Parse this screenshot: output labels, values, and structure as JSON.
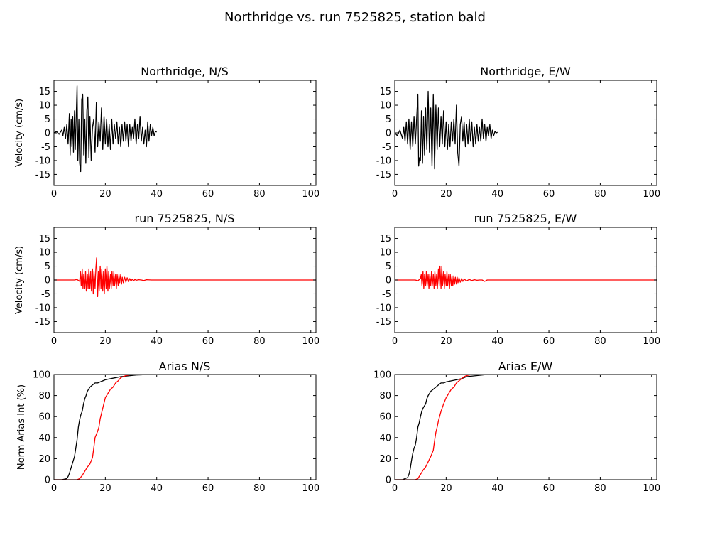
{
  "figure": {
    "title": "Northridge vs. run 7525825, station bald"
  },
  "colors": {
    "observed": "#000000",
    "simulated": "#ff0000",
    "axis": "#000000",
    "background": "#ffffff"
  },
  "chart_data": [
    {
      "type": "line",
      "title": "Northridge, N/S",
      "xlabel": "",
      "ylabel": "Velocity (cm/s)",
      "xlim": [
        0,
        102
      ],
      "ylim": [
        -19,
        19
      ],
      "xticks": [
        "0",
        "20",
        "40",
        "60",
        "80",
        "100"
      ],
      "yticks": [
        "15",
        "10",
        "5",
        "0",
        "-5",
        "-10",
        "-15"
      ],
      "grid": false,
      "series": [
        {
          "name": "",
          "color": "#000000",
          "x": [
            0,
            1,
            2,
            3,
            3.5,
            4,
            4.5,
            5,
            5.5,
            6,
            6.3,
            6.7,
            7,
            7.3,
            7.6,
            8,
            8.3,
            8.6,
            9,
            9.3,
            9.7,
            10,
            10.4,
            10.8,
            11.2,
            11.6,
            12,
            12.4,
            12.8,
            13.2,
            13.6,
            14,
            14.5,
            15,
            15.5,
            16,
            16.5,
            17,
            17.5,
            18,
            18.5,
            19,
            19.5,
            20,
            20.5,
            21,
            21.5,
            22,
            22.5,
            23,
            23.5,
            24,
            24.5,
            25,
            25.5,
            26,
            26.5,
            27,
            27.5,
            28,
            28.5,
            29,
            29.5,
            30,
            30.5,
            31,
            31.5,
            32,
            32.5,
            33,
            33.5,
            34,
            34.5,
            35,
            35.5,
            36,
            36.5,
            37,
            37.5,
            38,
            38.5,
            39,
            39.5,
            40
          ],
          "y": [
            0,
            0.5,
            -0.5,
            1,
            -1,
            2,
            -2,
            3,
            -4,
            7,
            -8,
            5,
            -5,
            6,
            -7,
            8,
            -6,
            4,
            17,
            -10,
            5,
            -11,
            -14,
            12,
            14,
            -8,
            5,
            -11,
            8,
            13,
            -9,
            6,
            -10,
            2,
            5,
            -7,
            11,
            -5,
            4,
            -3,
            9,
            -6,
            6,
            -4,
            5,
            -5,
            3,
            -6,
            5,
            -4,
            3,
            -2,
            4,
            -4,
            2,
            -5,
            3,
            -3,
            4,
            -3,
            3,
            -5,
            3,
            -3,
            2,
            -2,
            5,
            -4,
            3,
            -2,
            6,
            -3,
            2,
            -4,
            1,
            -5,
            4,
            -3,
            3,
            -1,
            2,
            -1,
            0.5,
            0.3
          ]
        }
      ]
    },
    {
      "type": "line",
      "title": "Northridge, E/W",
      "xlabel": "",
      "ylabel": "",
      "xlim": [
        0,
        102
      ],
      "ylim": [
        -19,
        19
      ],
      "xticks": [
        "0",
        "20",
        "40",
        "60",
        "80",
        "100"
      ],
      "yticks": [
        "15",
        "10",
        "5",
        "0",
        "-5",
        "-10",
        "-15"
      ],
      "grid": false,
      "series": [
        {
          "name": "",
          "color": "#000000",
          "x": [
            0,
            1,
            2,
            3,
            3.5,
            4,
            4.5,
            5,
            5.5,
            6,
            6.5,
            7,
            7.5,
            8,
            8.5,
            9,
            9.3,
            9.6,
            10,
            10.4,
            10.8,
            11.2,
            11.6,
            12,
            12.5,
            13,
            13.5,
            14,
            14.5,
            15,
            15.5,
            16,
            16.5,
            17,
            17.5,
            18,
            18.5,
            19,
            19.5,
            20,
            20.5,
            21,
            21.5,
            22,
            22.5,
            23,
            23.5,
            24,
            24.5,
            25,
            25.5,
            26,
            26.5,
            27,
            27.5,
            28,
            28.5,
            29,
            29.5,
            30,
            30.5,
            31,
            31.5,
            32,
            32.5,
            33,
            33.5,
            34,
            34.5,
            35,
            35.5,
            36,
            36.5,
            37,
            37.5,
            38,
            38.5,
            39,
            39.5,
            40
          ],
          "y": [
            0,
            -1,
            1,
            -2,
            2,
            -3,
            4,
            -4,
            5,
            -6,
            4,
            -5,
            6,
            -4,
            5,
            14,
            -12,
            -9,
            -10,
            8,
            -11,
            6,
            -8,
            9,
            -6,
            15,
            -7,
            9,
            -12,
            14,
            -13,
            10,
            -6,
            9,
            -5,
            6,
            -4,
            8,
            -5,
            4,
            -6,
            3,
            -5,
            4,
            -3,
            5,
            -4,
            10,
            -7,
            -12,
            3,
            6,
            -3,
            4,
            -5,
            3,
            -4,
            5,
            -3,
            4,
            -5,
            2,
            -4,
            3,
            -3,
            2,
            -3,
            5,
            -2,
            3,
            -3,
            2,
            -1,
            3,
            -2,
            1,
            -1,
            0.5,
            0,
            0.2
          ]
        }
      ]
    },
    {
      "type": "line",
      "title": "run 7525825, N/S",
      "xlabel": "",
      "ylabel": "Velocity (cm/s)",
      "xlim": [
        0,
        102
      ],
      "ylim": [
        -19,
        19
      ],
      "xticks": [
        "0",
        "20",
        "40",
        "60",
        "80",
        "100"
      ],
      "yticks": [
        "15",
        "10",
        "5",
        "0",
        "-5",
        "-10",
        "-15"
      ],
      "grid": false,
      "series": [
        {
          "name": "",
          "color": "#ff0000",
          "x": [
            0,
            2,
            4,
            6,
            8,
            9,
            10,
            10.3,
            10.6,
            11,
            11.3,
            11.6,
            12,
            12.3,
            12.6,
            13,
            13.3,
            13.6,
            14,
            14.3,
            14.6,
            15,
            15.3,
            15.6,
            16,
            16.3,
            16.6,
            17,
            17.3,
            17.6,
            18,
            18.3,
            18.6,
            19,
            19.3,
            19.6,
            20,
            20.3,
            20.6,
            21,
            21.3,
            21.6,
            22,
            22.3,
            22.6,
            23,
            23.3,
            23.6,
            24,
            24.3,
            24.6,
            25,
            25.3,
            25.6,
            26,
            26.3,
            26.6,
            27,
            27.5,
            28,
            28.5,
            29,
            29.5,
            30,
            30.5,
            31,
            31.5,
            32,
            33,
            34,
            35,
            36,
            38,
            40,
            50,
            60,
            70,
            80,
            90,
            100,
            102
          ],
          "y": [
            0,
            0,
            0,
            0,
            0,
            0.2,
            -0.5,
            3,
            -2,
            4,
            -3,
            2,
            -3,
            3,
            -4,
            2,
            -3,
            4,
            -3,
            3,
            -4,
            4,
            -5,
            3,
            -3,
            4,
            8,
            -6,
            3,
            -4,
            5,
            -3,
            4,
            -4,
            3,
            -5,
            4,
            -3,
            5,
            -4,
            3,
            -3,
            2,
            -3,
            3,
            -2,
            3,
            -2,
            2,
            -3,
            2,
            -2,
            2,
            -1,
            2,
            -1.5,
            1,
            -1,
            1,
            -0.8,
            0.8,
            -0.6,
            0.5,
            -0.4,
            0.3,
            -0.3,
            0.2,
            -0.1,
            0.1,
            0,
            -0.2,
            0.1,
            0,
            0,
            0,
            0,
            0,
            0,
            0,
            0,
            0
          ]
        }
      ]
    },
    {
      "type": "line",
      "title": "run 7525825, E/W",
      "xlabel": "",
      "ylabel": "",
      "xlim": [
        0,
        102
      ],
      "ylim": [
        -19,
        19
      ],
      "xticks": [
        "0",
        "20",
        "40",
        "60",
        "80",
        "100"
      ],
      "yticks": [
        "15",
        "10",
        "5",
        "0",
        "-5",
        "-10",
        "-15"
      ],
      "grid": false,
      "series": [
        {
          "name": "",
          "color": "#ff0000",
          "x": [
            0,
            2,
            4,
            6,
            8,
            9,
            10,
            10.3,
            10.6,
            11,
            11.3,
            11.6,
            12,
            12.3,
            12.6,
            13,
            13.3,
            13.6,
            14,
            14.3,
            14.6,
            15,
            15.3,
            15.6,
            16,
            16.3,
            16.6,
            17,
            17.3,
            17.6,
            18,
            18.3,
            18.6,
            19,
            19.3,
            19.6,
            20,
            20.3,
            20.6,
            21,
            21.3,
            21.6,
            22,
            22.3,
            22.6,
            23,
            23.3,
            23.6,
            24,
            24.3,
            24.6,
            25,
            25.5,
            26,
            26.5,
            27,
            28,
            29,
            30,
            31,
            32,
            33,
            34,
            35,
            36,
            38,
            40,
            50,
            60,
            70,
            80,
            90,
            100,
            102
          ],
          "y": [
            0,
            0,
            0,
            0,
            0,
            -0.3,
            0.5,
            2,
            -2,
            3,
            -3,
            2,
            -2,
            3,
            -2,
            2,
            -3,
            2,
            -2,
            3,
            -2,
            2,
            -3,
            3,
            -2,
            2,
            -3,
            4,
            -2,
            5,
            -3,
            5,
            -2,
            3,
            -3,
            2,
            -2,
            3,
            -2,
            2,
            -3,
            2,
            -2,
            1.5,
            -2,
            1.5,
            -1.5,
            1,
            -1.5,
            1,
            -1,
            0.8,
            -0.8,
            0.5,
            -0.5,
            0.3,
            -0.3,
            0.2,
            -0.2,
            0.1,
            -0.1,
            0,
            0,
            -0.5,
            0,
            0,
            0,
            0,
            0,
            0,
            0,
            0,
            0,
            0
          ]
        }
      ]
    },
    {
      "type": "line",
      "title": "Arias N/S",
      "xlabel": "",
      "ylabel": "Norm Arias Int (%)",
      "xlim": [
        0,
        102
      ],
      "ylim": [
        0,
        100
      ],
      "xticks": [
        "0",
        "20",
        "40",
        "60",
        "80",
        "100"
      ],
      "yticks": [
        "100",
        "80",
        "60",
        "40",
        "20",
        "0"
      ],
      "grid": false,
      "series": [
        {
          "name": "",
          "color": "#000000",
          "x": [
            0,
            3,
            4,
            5,
            5.5,
            6,
            6.5,
            7,
            7.5,
            8,
            8.5,
            9,
            9.5,
            10,
            10.5,
            11,
            11.5,
            12,
            12.5,
            13,
            13.5,
            14,
            15,
            16,
            17,
            18,
            19,
            20,
            22,
            24,
            26,
            28,
            30,
            32,
            34,
            36,
            40,
            102
          ],
          "y": [
            0,
            0,
            0.5,
            1,
            3,
            6,
            10,
            14,
            18,
            22,
            30,
            38,
            50,
            57,
            62,
            65,
            72,
            77,
            80,
            84,
            86,
            88,
            90,
            92,
            92,
            93,
            94,
            95,
            96,
            97,
            98,
            98.5,
            99,
            99.5,
            99.7,
            100,
            100,
            100
          ]
        },
        {
          "name": "",
          "color": "#ff0000",
          "x": [
            0,
            5,
            9,
            10,
            11,
            12,
            13,
            14,
            15,
            15.5,
            16,
            16.5,
            17,
            17.5,
            18,
            19,
            20,
            21,
            22,
            23,
            24,
            25,
            26,
            27,
            28,
            30,
            35,
            102
          ],
          "y": [
            0,
            0,
            0,
            1,
            4,
            8,
            12,
            15,
            21,
            30,
            40,
            43,
            46,
            50,
            58,
            68,
            78,
            82,
            86,
            88,
            92,
            94,
            97,
            98,
            99,
            100,
            100,
            100
          ]
        }
      ]
    },
    {
      "type": "line",
      "title": "Arias E/W",
      "xlabel": "",
      "ylabel": "",
      "xlim": [
        0,
        102
      ],
      "ylim": [
        0,
        100
      ],
      "xticks": [
        "0",
        "20",
        "40",
        "60",
        "80",
        "100"
      ],
      "yticks": [
        "100",
        "80",
        "60",
        "40",
        "20",
        "0"
      ],
      "grid": false,
      "series": [
        {
          "name": "",
          "color": "#000000",
          "x": [
            0,
            3,
            4,
            5,
            5.5,
            6,
            6.5,
            7,
            7.5,
            8,
            8.5,
            9,
            9.5,
            10,
            10.5,
            11,
            11.5,
            12,
            12.5,
            13,
            14,
            15,
            16,
            17,
            18,
            19,
            20,
            22,
            24,
            26,
            28,
            30,
            32,
            34,
            36,
            40,
            102
          ],
          "y": [
            0,
            0,
            1,
            2,
            5,
            10,
            18,
            25,
            30,
            33,
            40,
            50,
            54,
            60,
            65,
            68,
            70,
            72,
            77,
            80,
            84,
            86,
            88,
            90,
            92,
            92,
            93,
            94,
            95,
            96,
            98,
            98.5,
            99,
            99.5,
            100,
            100,
            100
          ]
        },
        {
          "name": "",
          "color": "#ff0000",
          "x": [
            0,
            4,
            8,
            9,
            10,
            11,
            12,
            13,
            14,
            15,
            15.5,
            16,
            16.5,
            17,
            18,
            19,
            20,
            21,
            22,
            23,
            24,
            25,
            26,
            27,
            28,
            30,
            35,
            102
          ],
          "y": [
            0,
            0,
            0,
            1,
            5,
            9,
            12,
            17,
            22,
            28,
            37,
            45,
            50,
            56,
            65,
            72,
            78,
            82,
            86,
            88,
            92,
            94,
            96,
            98,
            99,
            100,
            100,
            100
          ]
        }
      ]
    }
  ]
}
